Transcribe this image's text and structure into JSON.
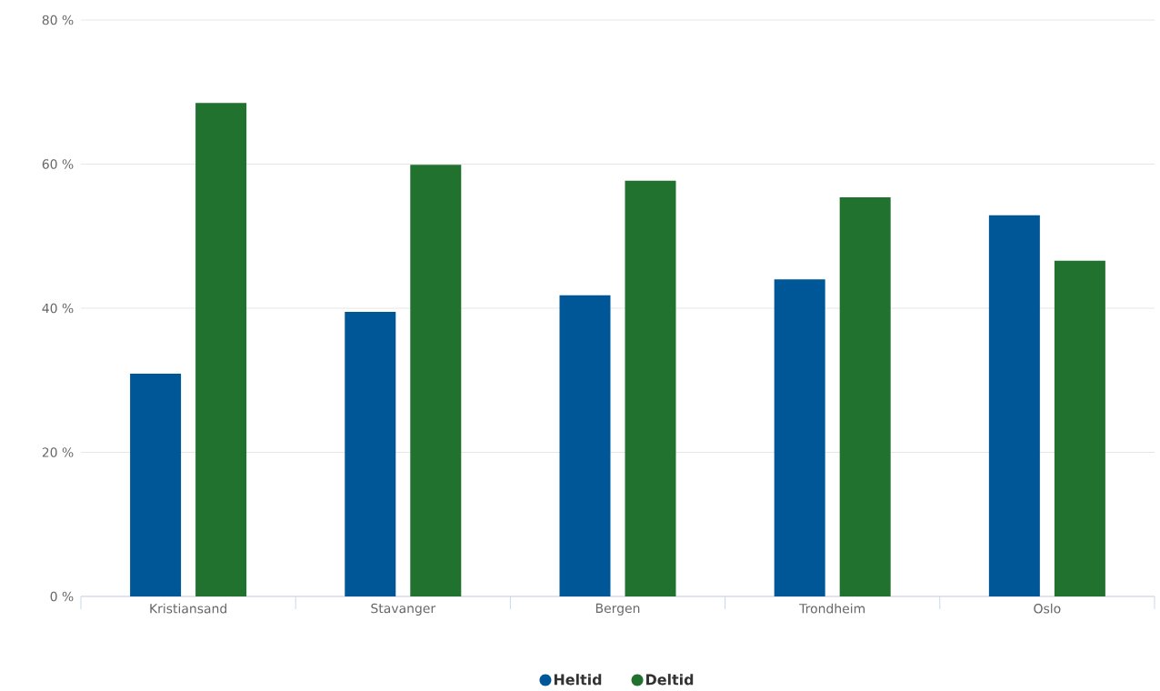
{
  "chart_data": {
    "type": "bar",
    "categories": [
      "Kristiansand",
      "Stavanger",
      "Bergen",
      "Trondheim",
      "Oslo"
    ],
    "series": [
      {
        "name": "Heltid",
        "color": "#005797",
        "values": [
          30.9,
          39.5,
          41.8,
          44.0,
          52.9
        ]
      },
      {
        "name": "Deltid",
        "color": "#21712f",
        "values": [
          68.5,
          59.9,
          57.7,
          55.4,
          46.6
        ]
      }
    ],
    "ylim": [
      0,
      80
    ],
    "yticks": [
      {
        "value": 0,
        "label": "0 %"
      },
      {
        "value": 20,
        "label": "20 %"
      },
      {
        "value": 40,
        "label": "40 %"
      },
      {
        "value": 60,
        "label": "60 %"
      },
      {
        "value": 80,
        "label": "80 %"
      }
    ],
    "grid": "y",
    "legend": "bottom"
  }
}
